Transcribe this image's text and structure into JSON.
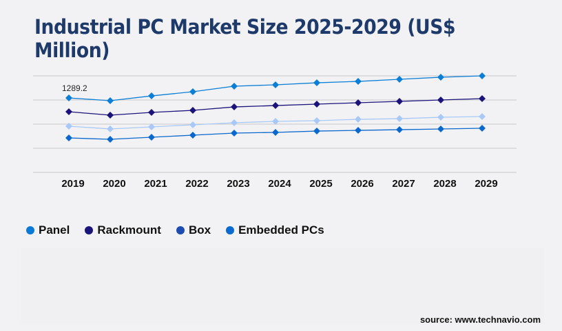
{
  "chart_data": {
    "type": "line",
    "title": "Industrial PC Market Size 2025-2029 (US$ Million)",
    "categories": [
      "2019",
      "2020",
      "2021",
      "2022",
      "2023",
      "2024",
      "2025",
      "2026",
      "2027",
      "2028",
      "2029"
    ],
    "ylim": [
      0,
      1672
    ],
    "grid": true,
    "legend_position": "bottom-left",
    "annotations": [
      {
        "series": "Panel",
        "category": "2019",
        "text": "1289.2"
      }
    ],
    "series": [
      {
        "name": "Panel",
        "color": "#0b7fd6",
        "legend_color": "#0a7ad6",
        "values": [
          1289.2,
          1242,
          1325,
          1397,
          1493,
          1517,
          1552,
          1576,
          1612,
          1648,
          1672
        ]
      },
      {
        "name": "Rackmount",
        "color": "#1b137a",
        "legend_color": "#1a157a",
        "values": [
          1051,
          991,
          1039,
          1075,
          1134,
          1158,
          1182,
          1206,
          1230,
          1254,
          1278
        ]
      },
      {
        "name": "Box",
        "color": "#a8c9f7",
        "legend_color": "#1c4cb0",
        "values": [
          800,
          752,
          788,
          824,
          860,
          884,
          896,
          919,
          931,
          955,
          967
        ]
      },
      {
        "name": "Embedded PCs",
        "color": "#0a68cc",
        "legend_color": "#0a6ad0",
        "values": [
          597,
          573,
          609,
          645,
          681,
          693,
          716,
          728,
          740,
          752,
          764
        ]
      }
    ]
  },
  "source": "source: www.technavio.com"
}
